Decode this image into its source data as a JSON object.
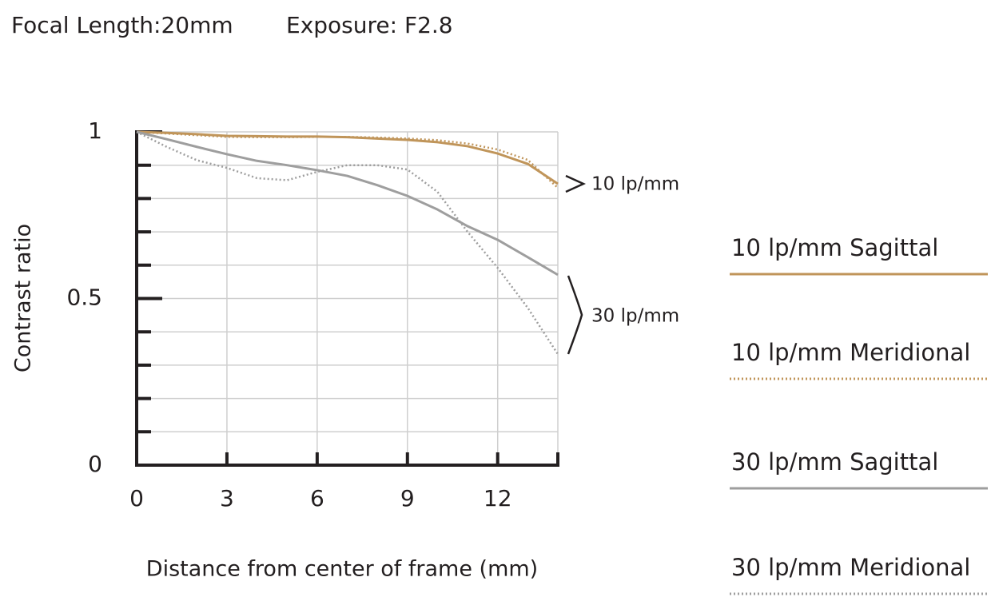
{
  "chart_data": {
    "type": "line",
    "title": "Focal Length:20mm",
    "subtitle": "Exposure: F2.8",
    "x_label": "Distance from center of frame (mm)",
    "y_label": "Contrast ratio",
    "x": [
      0,
      1,
      2,
      3,
      4,
      5,
      6,
      7,
      8,
      9,
      10,
      11,
      12,
      13,
      14
    ],
    "xlim": [
      0,
      14
    ],
    "xticks": [
      0,
      3,
      6,
      9,
      12
    ],
    "ylim": [
      0,
      1
    ],
    "yticks": [
      0,
      0.5,
      1
    ],
    "yminor_ticks": [
      0.1,
      0.2,
      0.3,
      0.4,
      0.6,
      0.7,
      0.8,
      0.9
    ],
    "grid": true,
    "legend": "right",
    "series": [
      {
        "name": "10 lp/mm Sagittal",
        "color": "#c0955a",
        "dash": "solid",
        "values": [
          1,
          0.997,
          0.993,
          0.988,
          0.987,
          0.986,
          0.986,
          0.984,
          0.98,
          0.976,
          0.969,
          0.957,
          0.935,
          0.904,
          0.844
        ]
      },
      {
        "name": "10 lp/mm Meridional",
        "color": "#c0955a",
        "dash": "dotted",
        "values": [
          1,
          0.995,
          0.99,
          0.985,
          0.984,
          0.984,
          0.985,
          0.985,
          0.983,
          0.98,
          0.975,
          0.965,
          0.947,
          0.916,
          0.832
        ]
      },
      {
        "name": "30 lp/mm Sagittal",
        "color": "#9e9e9e",
        "dash": "solid",
        "values": [
          1,
          0.978,
          0.955,
          0.933,
          0.913,
          0.9,
          0.885,
          0.868,
          0.84,
          0.808,
          0.767,
          0.717,
          0.676,
          0.624,
          0.571
        ]
      },
      {
        "name": "30 lp/mm Meridional",
        "color": "#9e9e9e",
        "dash": "dotted",
        "values": [
          1,
          0.955,
          0.915,
          0.892,
          0.861,
          0.855,
          0.88,
          0.9,
          0.9,
          0.887,
          0.82,
          0.7,
          0.592,
          0.472,
          0.333
        ]
      }
    ],
    "annotations": [
      "10 lp/mm",
      "30 lp/mm"
    ]
  }
}
